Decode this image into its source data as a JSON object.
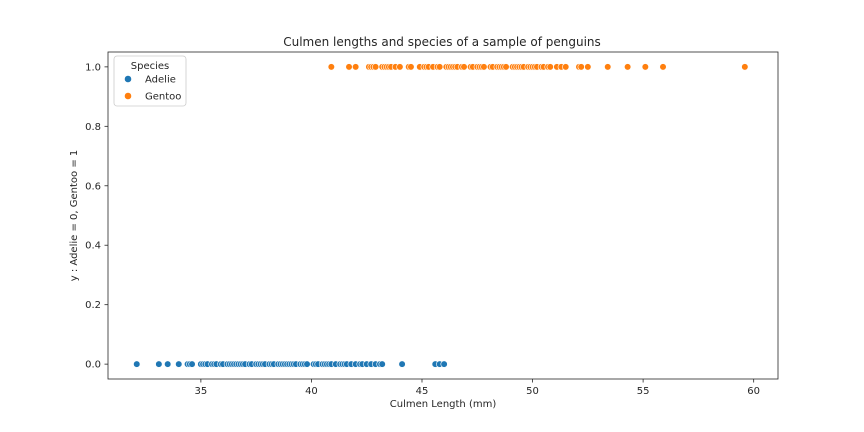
{
  "chart_data": {
    "type": "scatter",
    "title": "Culmen lengths and species of a sample of penguins",
    "xlabel": "Culmen Length (mm)",
    "ylabel": "y : Adelie = 0, Gentoo = 1",
    "xlim": [
      30.8,
      61.1
    ],
    "ylim": [
      -0.05,
      1.05
    ],
    "xticks": [
      35,
      40,
      45,
      50,
      55,
      60
    ],
    "yticks": [
      0.0,
      0.2,
      0.4,
      0.6,
      0.8,
      1.0
    ],
    "grid": false,
    "legend": {
      "title": "Species",
      "placement": "top-left"
    },
    "series": [
      {
        "name": "Adelie",
        "color": "#1f77b4",
        "x": [
          32.1,
          33.1,
          33.5,
          34.0,
          34.4,
          34.5,
          34.6,
          35.0,
          35.1,
          35.2,
          35.3,
          35.5,
          35.6,
          35.7,
          35.9,
          36.0,
          36.2,
          36.3,
          36.4,
          36.5,
          36.6,
          36.7,
          36.8,
          36.9,
          37.0,
          37.2,
          37.3,
          37.5,
          37.6,
          37.7,
          37.8,
          37.9,
          38.1,
          38.2,
          38.3,
          38.5,
          38.6,
          38.7,
          38.8,
          38.9,
          39.0,
          39.1,
          39.2,
          39.3,
          39.5,
          39.6,
          39.7,
          39.8,
          40.1,
          40.2,
          40.3,
          40.5,
          40.6,
          40.7,
          40.8,
          40.9,
          41.1,
          41.3,
          41.4,
          41.5,
          41.6,
          41.8,
          42.0,
          42.2,
          42.3,
          42.5,
          42.7,
          42.9,
          43.1,
          43.2,
          44.1,
          45.6,
          45.8,
          46.0
        ],
        "y": [
          0,
          0,
          0,
          0,
          0,
          0,
          0,
          0,
          0,
          0,
          0,
          0,
          0,
          0,
          0,
          0,
          0,
          0,
          0,
          0,
          0,
          0,
          0,
          0,
          0,
          0,
          0,
          0,
          0,
          0,
          0,
          0,
          0,
          0,
          0,
          0,
          0,
          0,
          0,
          0,
          0,
          0,
          0,
          0,
          0,
          0,
          0,
          0,
          0,
          0,
          0,
          0,
          0,
          0,
          0,
          0,
          0,
          0,
          0,
          0,
          0,
          0,
          0,
          0,
          0,
          0,
          0,
          0,
          0,
          0,
          0,
          0,
          0,
          0
        ]
      },
      {
        "name": "Gentoo",
        "color": "#ff7f0e",
        "x": [
          40.9,
          41.7,
          42.0,
          42.6,
          42.7,
          42.8,
          42.9,
          43.2,
          43.3,
          43.4,
          43.5,
          43.6,
          43.8,
          44.0,
          44.4,
          44.5,
          44.9,
          45.1,
          45.2,
          45.3,
          45.5,
          45.7,
          45.8,
          46.1,
          46.2,
          46.3,
          46.4,
          46.5,
          46.6,
          46.8,
          46.9,
          47.2,
          47.3,
          47.5,
          47.6,
          47.7,
          47.8,
          48.1,
          48.2,
          48.4,
          48.5,
          48.6,
          48.7,
          48.8,
          49.1,
          49.2,
          49.3,
          49.4,
          49.5,
          49.6,
          49.8,
          49.9,
          50.0,
          50.1,
          50.2,
          50.4,
          50.5,
          50.7,
          50.8,
          51.1,
          51.3,
          51.5,
          52.1,
          52.2,
          52.5,
          53.4,
          54.3,
          55.1,
          55.9,
          59.6
        ],
        "y": [
          1,
          1,
          1,
          1,
          1,
          1,
          1,
          1,
          1,
          1,
          1,
          1,
          1,
          1,
          1,
          1,
          1,
          1,
          1,
          1,
          1,
          1,
          1,
          1,
          1,
          1,
          1,
          1,
          1,
          1,
          1,
          1,
          1,
          1,
          1,
          1,
          1,
          1,
          1,
          1,
          1,
          1,
          1,
          1,
          1,
          1,
          1,
          1,
          1,
          1,
          1,
          1,
          1,
          1,
          1,
          1,
          1,
          1,
          1,
          1,
          1,
          1,
          1,
          1,
          1,
          1,
          1,
          1,
          1,
          1
        ]
      }
    ]
  }
}
